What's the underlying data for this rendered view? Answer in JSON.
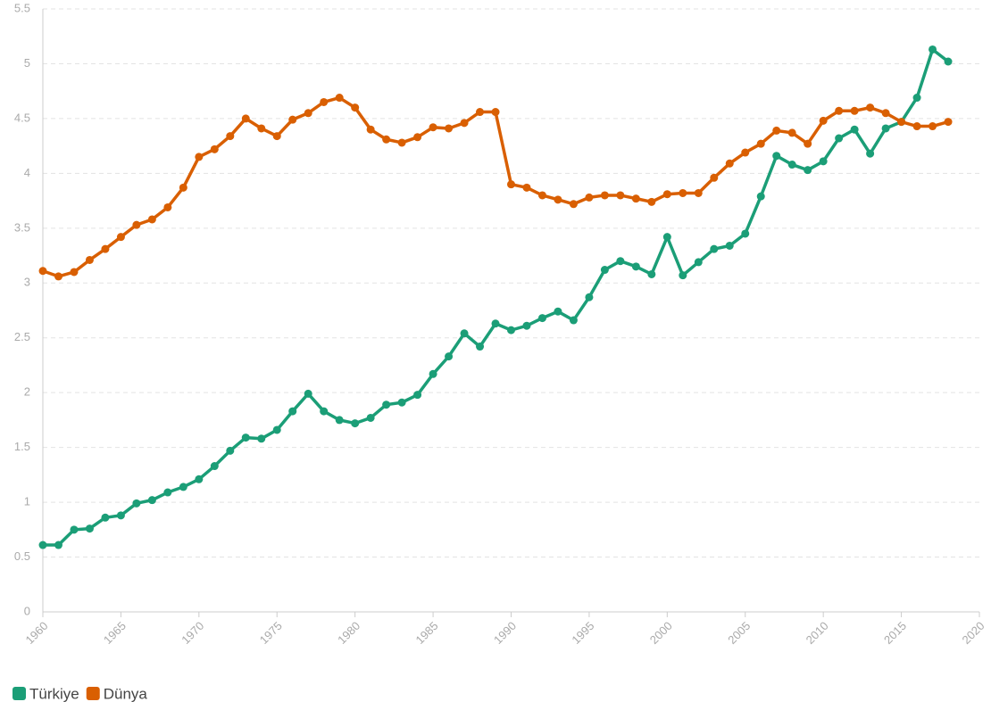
{
  "chart_data": {
    "type": "line",
    "x": [
      1960,
      1961,
      1962,
      1963,
      1964,
      1965,
      1966,
      1967,
      1968,
      1969,
      1970,
      1971,
      1972,
      1973,
      1974,
      1975,
      1976,
      1977,
      1978,
      1979,
      1980,
      1981,
      1982,
      1983,
      1984,
      1985,
      1986,
      1987,
      1988,
      1989,
      1990,
      1991,
      1992,
      1993,
      1994,
      1995,
      1996,
      1997,
      1998,
      1999,
      2000,
      2001,
      2002,
      2003,
      2004,
      2005,
      2006,
      2007,
      2008,
      2009,
      2010,
      2011,
      2012,
      2013,
      2014,
      2015,
      2016,
      2017,
      2018
    ],
    "series": [
      {
        "name": "Türkiye",
        "color": "#1b9e77",
        "values": [
          0.61,
          0.61,
          0.75,
          0.76,
          0.86,
          0.88,
          0.99,
          1.02,
          1.09,
          1.14,
          1.21,
          1.33,
          1.47,
          1.59,
          1.58,
          1.66,
          1.83,
          1.99,
          1.83,
          1.75,
          1.72,
          1.77,
          1.89,
          1.91,
          1.98,
          2.17,
          2.33,
          2.54,
          2.42,
          2.63,
          2.57,
          2.61,
          2.68,
          2.74,
          2.66,
          2.87,
          3.12,
          3.2,
          3.15,
          3.08,
          3.42,
          3.07,
          3.19,
          3.31,
          3.34,
          3.45,
          3.79,
          4.16,
          4.08,
          4.03,
          4.11,
          4.32,
          4.4,
          4.18,
          4.41,
          4.47,
          4.69,
          5.13,
          5.02
        ]
      },
      {
        "name": "Dünya",
        "color": "#d95f02",
        "values": [
          3.11,
          3.06,
          3.1,
          3.21,
          3.31,
          3.42,
          3.53,
          3.58,
          3.69,
          3.87,
          4.15,
          4.22,
          4.34,
          4.5,
          4.41,
          4.34,
          4.49,
          4.55,
          4.65,
          4.69,
          4.6,
          4.4,
          4.31,
          4.28,
          4.33,
          4.42,
          4.41,
          4.46,
          4.56,
          4.56,
          3.9,
          3.87,
          3.8,
          3.76,
          3.72,
          3.78,
          3.8,
          3.8,
          3.77,
          3.74,
          3.81,
          3.82,
          3.82,
          3.96,
          4.09,
          4.19,
          4.27,
          4.39,
          4.37,
          4.27,
          4.48,
          4.57,
          4.57,
          4.6,
          4.55,
          4.47,
          4.43,
          4.43,
          4.47
        ]
      }
    ],
    "xlim": [
      1960,
      2020
    ],
    "xticks": [
      1960,
      1965,
      1970,
      1975,
      1980,
      1985,
      1990,
      1995,
      2000,
      2005,
      2010,
      2015,
      2020
    ],
    "ylim": [
      0,
      5.5
    ],
    "yticks": [
      0,
      0.5,
      1,
      1.5,
      2,
      2.5,
      3,
      3.5,
      4,
      4.5,
      5,
      5.5
    ],
    "grid": true,
    "legend": "bottom"
  }
}
